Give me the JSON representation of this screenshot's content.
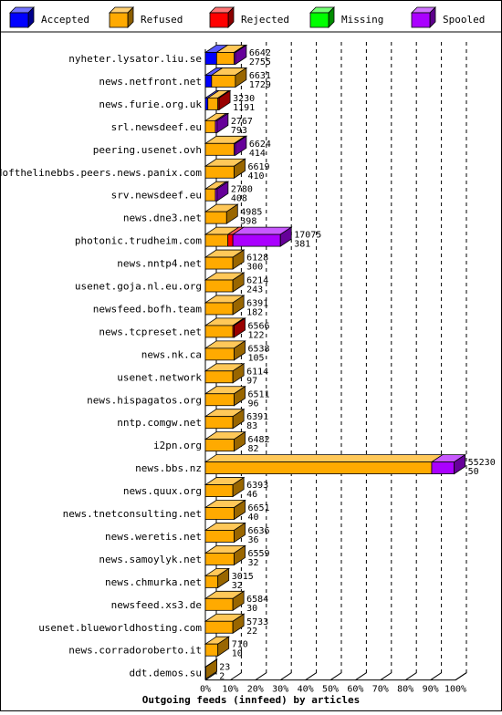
{
  "chart_data": {
    "type": "bar",
    "title": "Outgoing feeds (innfeed) by articles",
    "legend": [
      {
        "name": "Accepted",
        "color": "#0000ff"
      },
      {
        "name": "Refused",
        "color": "#ffaa00"
      },
      {
        "name": "Rejected",
        "color": "#ff0000"
      },
      {
        "name": "Missing",
        "color": "#00ff00"
      },
      {
        "name": "Spooled",
        "color": "#aa00ff"
      }
    ],
    "legend_placement": "top",
    "xlim": [
      0,
      100
    ],
    "x_ticks": [
      "0%",
      "10%",
      "20%",
      "30%",
      "40%",
      "50%",
      "60%",
      "70%",
      "80%",
      "90%",
      "100%"
    ],
    "grid": true,
    "categories": [
      "nyheter.lysator.liu.se",
      "news.netfront.net",
      "news.furie.org.uk",
      "srl.newsdeef.eu",
      "peering.usenet.ovh",
      "endofthelinebbs.peers.news.panix.com",
      "srv.newsdeef.eu",
      "news.dne3.net",
      "photonic.trudheim.com",
      "news.nntp4.net",
      "usenet.goja.nl.eu.org",
      "newsfeed.bofh.team",
      "news.tcpreset.net",
      "news.nk.ca",
      "usenet.network",
      "news.hispagatos.org",
      "nntp.comgw.net",
      "i2pn.org",
      "news.bbs.nz",
      "news.quux.org",
      "news.tnetconsulting.net",
      "news.weretis.net",
      "news.samoylyk.net",
      "news.chmurka.net",
      "newsfeed.xs3.de",
      "usenet.blueworldhosting.com",
      "news.corradoroberto.it",
      "ddt.demos.su"
    ],
    "labels": [
      [
        "6642",
        "2755"
      ],
      [
        "6631",
        "1729"
      ],
      [
        "3230",
        "1191"
      ],
      [
        "2767",
        "793"
      ],
      [
        "6624",
        "414"
      ],
      [
        "6619",
        "410"
      ],
      [
        "2780",
        "408"
      ],
      [
        "4985",
        "398"
      ],
      [
        "17075",
        "381"
      ],
      [
        "6128",
        "300"
      ],
      [
        "6214",
        "243"
      ],
      [
        "6391",
        "182"
      ],
      [
        "6566",
        "122"
      ],
      [
        "6538",
        "105"
      ],
      [
        "6114",
        "97"
      ],
      [
        "6511",
        "96"
      ],
      [
        "6391",
        "83"
      ],
      [
        "6482",
        "82"
      ],
      [
        "55230",
        "50"
      ],
      [
        "6393",
        "46"
      ],
      [
        "6651",
        "40"
      ],
      [
        "6636",
        "36"
      ],
      [
        "6559",
        "32"
      ],
      [
        "3015",
        "32"
      ],
      [
        "6584",
        "30"
      ],
      [
        "5733",
        "22"
      ],
      [
        "710",
        "10"
      ],
      [
        "23",
        "2"
      ]
    ],
    "series": [
      {
        "name": "Accepted",
        "color": "#0000ff",
        "values": [
          4.5,
          2.5,
          1,
          0,
          0,
          0,
          0,
          0,
          0,
          0,
          0,
          0,
          0,
          0,
          0,
          0,
          0,
          0,
          0,
          0,
          0,
          0,
          0,
          0,
          0,
          0,
          0,
          0
        ]
      },
      {
        "name": "Refused",
        "color": "#ffaa00",
        "values": [
          7,
          9.5,
          4,
          4,
          11.5,
          11.5,
          4,
          8.5,
          9,
          11,
          11,
          11,
          11,
          11.5,
          11,
          11.5,
          11,
          11.5,
          90.5,
          11,
          11.5,
          11.5,
          11.5,
          5,
          11,
          11,
          5,
          0.1
        ]
      },
      {
        "name": "Rejected",
        "color": "#ff0000",
        "values": [
          0,
          0,
          0.5,
          0,
          0,
          0,
          0,
          0,
          2,
          0,
          0,
          0,
          0.5,
          0,
          0,
          0,
          0,
          0,
          0,
          0,
          0,
          0,
          0,
          0,
          0,
          0,
          0,
          0
        ]
      },
      {
        "name": "Missing",
        "color": "#00ff00",
        "values": [
          0,
          0,
          0,
          0,
          0,
          0,
          0,
          0,
          0,
          0,
          0,
          0,
          0,
          0,
          0,
          0,
          0,
          0,
          0,
          0,
          0,
          0,
          0,
          0,
          0,
          0,
          0,
          0
        ]
      },
      {
        "name": "Spooled",
        "color": "#aa00ff",
        "values": [
          0.5,
          0,
          0,
          0.7,
          0.5,
          0,
          0.7,
          0,
          19,
          0,
          0,
          0,
          0,
          0,
          0,
          0,
          0,
          0,
          9,
          0,
          0,
          0,
          0,
          0,
          0,
          0,
          0,
          0
        ]
      }
    ],
    "top_colors": {
      "#0000ff": "#0000ff",
      "#ffaa00": "#ffaa00",
      "#ff0000": "#ff0000",
      "#00ff00": "#00ff00",
      "#aa00ff": "#aa00ff"
    }
  }
}
